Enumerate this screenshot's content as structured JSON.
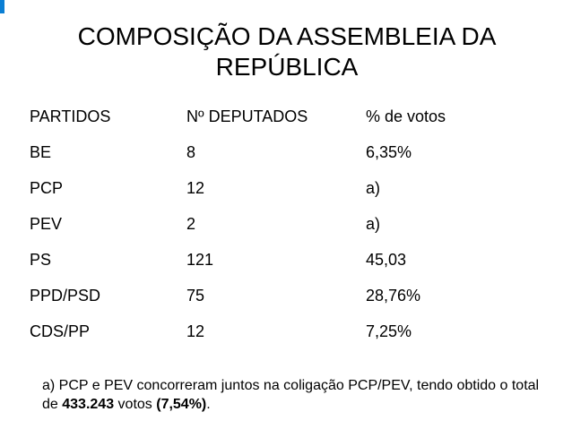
{
  "title": "COMPOSIÇÃO DA ASSEMBLEIA DA REPÚBLICA",
  "accent_color": "#0b7fd4",
  "table": {
    "headers": [
      "PARTIDOS",
      "Nº DEPUTADOS",
      "% de votos"
    ],
    "rows": [
      [
        "BE",
        "8",
        "6,35%"
      ],
      [
        "PCP",
        "12",
        "a)"
      ],
      [
        "PEV",
        "2",
        "a)"
      ],
      [
        "PS",
        "121",
        "45,03"
      ],
      [
        "PPD/PSD",
        "75",
        "28,76%"
      ],
      [
        "CDS/PP",
        "12",
        "7,25%"
      ]
    ]
  },
  "footnote": {
    "text_start": "a) PCP e PEV concorreram juntos na coligação PCP/PEV, tendo obtido o total de ",
    "votes": "433.243",
    "text_mid": " votos ",
    "percent": "(7,54%)",
    "text_end": "."
  }
}
